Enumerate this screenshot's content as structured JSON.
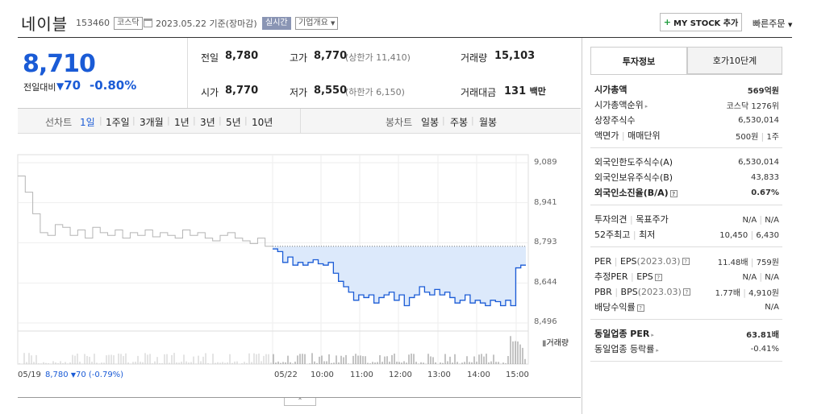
{
  "header": {
    "name": "네이블",
    "code": "153460",
    "market": "코스닥",
    "date_text": "2023.05.22 기준(장마감)",
    "realtime_badge": "실시간",
    "company_info": "기업개요",
    "mystock": "MY STOCK 추가",
    "quick_order": "빠른주문"
  },
  "summary": {
    "price": "8,710",
    "change_label": "전일대비",
    "change": "70",
    "change_pct": "-0.80%",
    "prev_label": "전일",
    "prev": "8,780",
    "high_label": "고가",
    "high": "8,770",
    "upper_limit": "(상한가 11,410)",
    "volume_label": "거래량",
    "volume": "15,103",
    "open_label": "시가",
    "open": "8,770",
    "low_label": "저가",
    "low": "8,550",
    "lower_limit": "(하한가 6,150)",
    "amount_label": "거래대금",
    "amount": "131",
    "amount_unit": "백만"
  },
  "chart_tabs": {
    "line_label": "선차트",
    "periods": [
      "1일",
      "1주일",
      "3개월",
      "1년",
      "3년",
      "5년",
      "10년"
    ],
    "candle_label": "봉차트",
    "candles": [
      "일봉",
      "주봉",
      "월봉"
    ]
  },
  "chart_data": {
    "type": "line",
    "y_ticks": [
      "9,089",
      "8,941",
      "8,793",
      "8,644",
      "8,496"
    ],
    "ylim": [
      8496,
      9089
    ],
    "prev_close": 8780,
    "x_ticks": [
      "05/19",
      "05/22",
      "10:00",
      "11:00",
      "12:00",
      "13:00",
      "14:00",
      "15:00"
    ],
    "volume_label": "거래량",
    "prev_day_series": [
      9040,
      8980,
      8900,
      8830,
      8820,
      8860,
      8850,
      8820,
      8840,
      8810,
      8850,
      8830,
      8820,
      8840,
      8810,
      8830,
      8820,
      8840,
      8815,
      8830,
      8820,
      8810,
      8840,
      8820,
      8830,
      8810,
      8800,
      8820,
      8830,
      8810,
      8800,
      8790,
      8810,
      8780
    ],
    "today_series": [
      8770,
      8760,
      8720,
      8740,
      8710,
      8720,
      8710,
      8720,
      8730,
      8715,
      8710,
      8720,
      8680,
      8650,
      8630,
      8610,
      8580,
      8600,
      8590,
      8600,
      8570,
      8590,
      8600,
      8610,
      8580,
      8600,
      8560,
      8590,
      8600,
      8630,
      8610,
      8600,
      8620,
      8600,
      8610,
      8590,
      8570,
      8580,
      8600,
      8570,
      8580,
      8570,
      8560,
      8580,
      8575,
      8560,
      8580,
      8560,
      8700,
      8710
    ]
  },
  "footer": {
    "prev_info_date": "05/19",
    "prev_info_price": "8,780",
    "prev_info_change": "70",
    "prev_info_pct": "(-0.79%)"
  },
  "right_panel": {
    "tabs": [
      "투자정보",
      "호가10단계"
    ],
    "market_cap_label": "시가총액",
    "market_cap": "569억원",
    "rank_label": "시가총액순위",
    "rank": "코스닥 1276위",
    "shares_label": "상장주식수",
    "shares": "6,530,014",
    "par_label": "액면가",
    "unit_label": "매매단위",
    "par": "500원",
    "unit": "1주",
    "foreign_limit_label": "외국인한도주식수(A)",
    "foreign_limit": "6,530,014",
    "foreign_hold_label": "외국인보유주식수(B)",
    "foreign_hold": "43,833",
    "foreign_rate_label": "외국인소진율(B/A)",
    "foreign_rate": "0.67%",
    "opinion_label": "투자의견",
    "target_label": "목표주가",
    "opinion": "N/A",
    "target": "N/A",
    "w52_high_label": "52주최고",
    "w52_low_label": "최저",
    "w52_high": "10,450",
    "w52_low": "6,430",
    "per_label": "PER",
    "eps_label": "EPS",
    "eps_year": "(2023.03)",
    "per": "11.48배",
    "eps": "759원",
    "est_per_label": "추정PER",
    "est_eps_label": "EPS",
    "est_per": "N/A",
    "est_eps": "N/A",
    "pbr_label": "PBR",
    "bps_label": "BPS",
    "bps_year": "(2023.03)",
    "pbr": "1.77배",
    "bps": "4,910원",
    "div_label": "배당수익률",
    "div": "N/A",
    "sector_per_label": "동일업종 PER",
    "sector_per": "63.81배",
    "sector_chg_label": "동일업종 등락률",
    "sector_chg": "-0.41%"
  }
}
